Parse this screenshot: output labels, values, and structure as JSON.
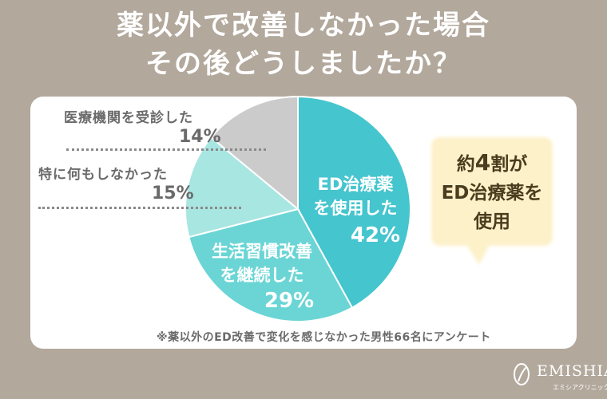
{
  "title_line1": "薬以外で改善しなかった場合",
  "title_line2": "その後どうしましたか？",
  "chart_data": {
    "type": "pie",
    "slices": [
      {
        "label_line1": "ED治療薬",
        "label_line2": "を使用した",
        "value": 42,
        "pct_text": "42%",
        "color": "#45c5ce"
      },
      {
        "label_line1": "生活習慣改善",
        "label_line2": "を継続した",
        "value": 29,
        "pct_text": "29%",
        "color": "#6bd5d5"
      },
      {
        "label_line1": "特に何もしなかった",
        "value": 15,
        "pct_text": "15%",
        "color": "#a8e6e2"
      },
      {
        "label_line1": "医療機関を受診した",
        "value": 14,
        "pct_text": "14%",
        "color": "#cbcbcb"
      }
    ]
  },
  "callout": {
    "line1_pre": "約",
    "line1_num": "4",
    "line1_post": "割が",
    "line2": "ED治療薬を",
    "line3": "使用",
    "color": "#fdf1c9"
  },
  "note": "※薬以外のED改善で変化を感じなかった男性66名にアンケート",
  "logo": {
    "name": "EMISHIA",
    "sub": "エミシアクリニック",
    "icon": "logo-leaf-icon"
  }
}
